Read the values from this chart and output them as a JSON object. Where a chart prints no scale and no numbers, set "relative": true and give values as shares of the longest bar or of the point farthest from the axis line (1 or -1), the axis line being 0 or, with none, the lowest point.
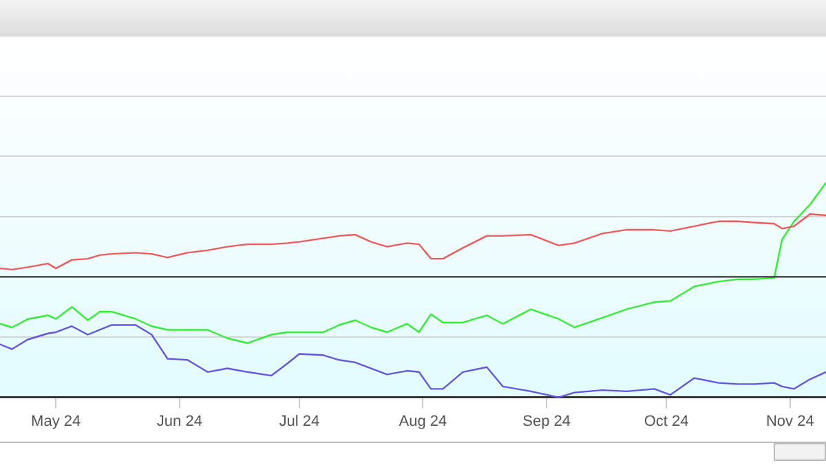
{
  "chart_data": {
    "type": "line",
    "relative": true,
    "grid": "y",
    "legend": false,
    "marker": "none",
    "line_style": "solid",
    "x": [
      "2024-04-17",
      "2024-04-20",
      "2024-04-24",
      "2024-04-29",
      "2024-05-01",
      "2024-05-05",
      "2024-05-09",
      "2024-05-12",
      "2024-05-15",
      "2024-05-21",
      "2024-05-25",
      "2024-05-29",
      "2024-06-03",
      "2024-06-08",
      "2024-06-13",
      "2024-06-18",
      "2024-06-24",
      "2024-06-28",
      "2024-07-01",
      "2024-07-07",
      "2024-07-11",
      "2024-07-15",
      "2024-07-19",
      "2024-07-23",
      "2024-07-28",
      "2024-07-31",
      "2024-08-03",
      "2024-08-06",
      "2024-08-11",
      "2024-08-17",
      "2024-08-21",
      "2024-08-28",
      "2024-09-04",
      "2024-09-08",
      "2024-09-15",
      "2024-09-21",
      "2024-09-28",
      "2024-10-02",
      "2024-10-08",
      "2024-10-14",
      "2024-10-19",
      "2024-10-23",
      "2024-10-28",
      "2024-10-30",
      "2024-11-02",
      "2024-11-06",
      "2024-11-10"
    ],
    "xlim": [
      "2024-04-17",
      "2024-11-10"
    ],
    "xticks": [
      {
        "value": "2024-05-01",
        "label": "May 24"
      },
      {
        "value": "2024-06-01",
        "label": "Jun 24"
      },
      {
        "value": "2024-07-01",
        "label": "Jul 24"
      },
      {
        "value": "2024-08-01",
        "label": "Aug 24"
      },
      {
        "value": "2024-09-01",
        "label": "Sep 24"
      },
      {
        "value": "2024-10-01",
        "label": "Oct 24"
      },
      {
        "value": "2024-11-01",
        "label": "Nov 24"
      }
    ],
    "ref_lines": [
      {
        "axis": "y",
        "value": 0,
        "color": "#222222"
      }
    ],
    "series": [
      {
        "color": "#f05a5a",
        "values": [
          0.07,
          0.06,
          0.08,
          0.11,
          0.07,
          0.14,
          0.15,
          0.18,
          0.19,
          0.2,
          0.19,
          0.16,
          0.2,
          0.22,
          0.25,
          0.27,
          0.27,
          0.28,
          0.29,
          0.32,
          0.34,
          0.35,
          0.29,
          0.25,
          0.28,
          0.27,
          0.15,
          0.15,
          0.24,
          0.34,
          0.34,
          0.35,
          0.26,
          0.28,
          0.36,
          0.39,
          0.39,
          0.38,
          0.42,
          0.46,
          0.46,
          0.45,
          0.44,
          0.4,
          0.42,
          0.52,
          0.51
        ]
      },
      {
        "color": "#33ee33",
        "values": [
          -0.39,
          -0.42,
          -0.35,
          -0.32,
          -0.35,
          -0.25,
          -0.36,
          -0.29,
          -0.29,
          -0.35,
          -0.41,
          -0.44,
          -0.44,
          -0.44,
          -0.51,
          -0.55,
          -0.48,
          -0.46,
          -0.46,
          -0.46,
          -0.4,
          -0.36,
          -0.42,
          -0.46,
          -0.39,
          -0.46,
          -0.31,
          -0.38,
          -0.38,
          -0.32,
          -0.39,
          -0.27,
          -0.35,
          -0.42,
          -0.34,
          -0.27,
          -0.21,
          -0.2,
          -0.08,
          -0.04,
          -0.02,
          -0.02,
          -0.01,
          0.31,
          0.46,
          0.6,
          0.78
        ]
      },
      {
        "color": "#6655dd",
        "values": [
          -0.56,
          -0.6,
          -0.52,
          -0.47,
          -0.46,
          -0.41,
          -0.48,
          -0.44,
          -0.4,
          -0.4,
          -0.48,
          -0.68,
          -0.69,
          -0.79,
          -0.76,
          -0.79,
          -0.82,
          -0.72,
          -0.64,
          -0.65,
          -0.69,
          -0.71,
          -0.76,
          -0.81,
          -0.78,
          -0.79,
          -0.93,
          -0.93,
          -0.79,
          -0.75,
          -0.91,
          -0.95,
          -1,
          -0.96,
          -0.94,
          -0.95,
          -0.93,
          -0.98,
          -0.84,
          -0.88,
          -0.89,
          -0.89,
          -0.88,
          -0.91,
          -0.93,
          -0.85,
          -0.79
        ]
      }
    ]
  }
}
